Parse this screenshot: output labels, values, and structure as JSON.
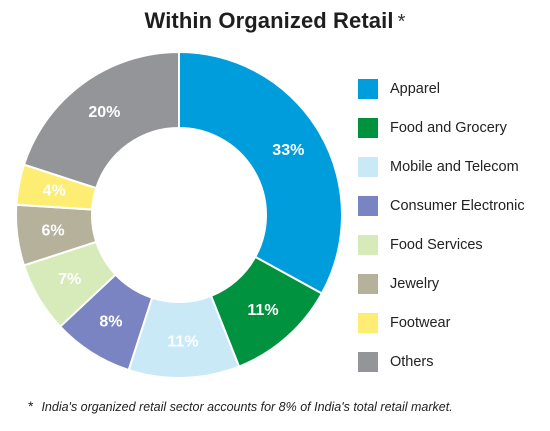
{
  "title": "Within Organized Retail",
  "title_marker": "*",
  "chart_data": {
    "type": "pie",
    "subtype": "donut",
    "title": "Within Organized Retail",
    "categories": [
      "Apparel",
      "Food and Grocery",
      "Mobile and Telecom",
      "Consumer Electronic",
      "Food Services",
      "Jewelry",
      "Footwear",
      "Others"
    ],
    "values": [
      33,
      11,
      11,
      8,
      7,
      6,
      4,
      20
    ],
    "labels": [
      "33%",
      "11%",
      "11%",
      "8%",
      "7%",
      "6%",
      "4%",
      "20%"
    ],
    "colors": [
      "#009ddc",
      "#00923f",
      "#c9e9f7",
      "#7b84c2",
      "#d6ebb9",
      "#b5b19b",
      "#fdee73",
      "#939598"
    ],
    "label_colors": [
      "#ffffff",
      "#ffffff",
      "#ffffff",
      "#ffffff",
      "#ffffff",
      "#ffffff",
      "#ffffff",
      "#ffffff"
    ],
    "start": "12 o'clock",
    "direction": "clockwise",
    "legend_position": "right"
  },
  "footnote": {
    "marker": "*",
    "text": "India's organized retail sector accounts for 8% of India's total retail market."
  }
}
